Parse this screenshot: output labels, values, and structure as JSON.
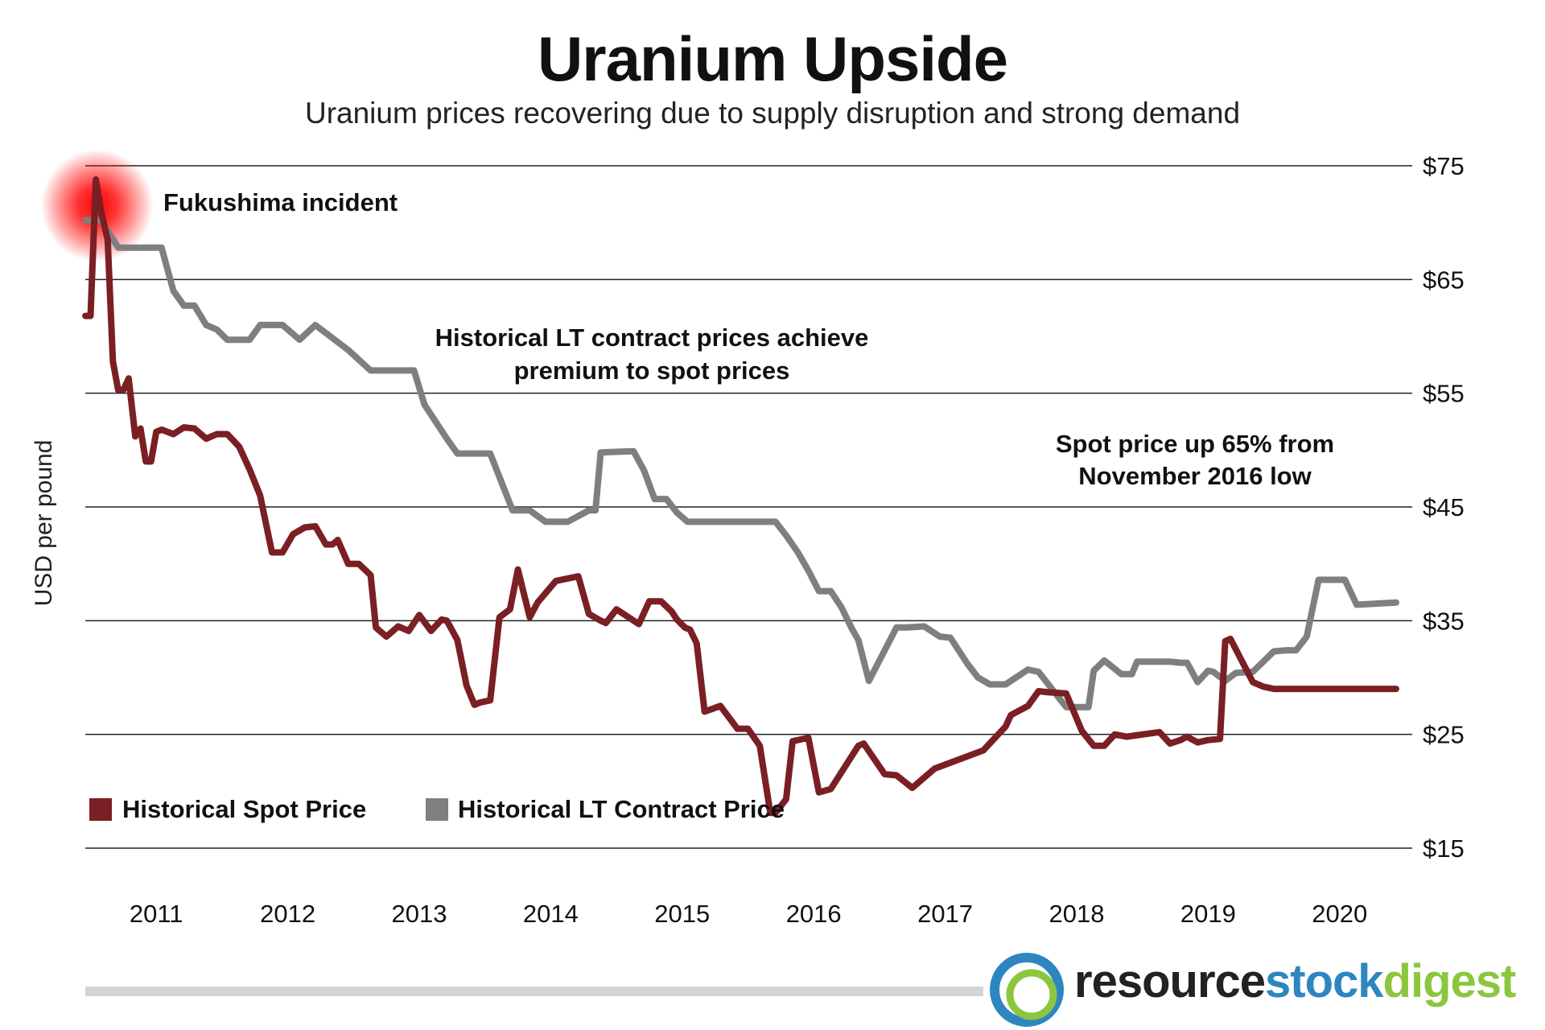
{
  "title": "Uranium Upside",
  "subtitle": "Uranium prices recovering due to supply disruption and strong demand",
  "colors": {
    "spot": "#7a1f24",
    "lt": "#7f7f7f",
    "grid": "#222222",
    "glow": "#ff0000"
  },
  "annotations": {
    "fukushima": "Fukushima incident",
    "lt_premium_line1": "Historical LT contract prices achieve",
    "lt_premium_line2": "premium to spot prices",
    "spot_up_line1": "Spot price up 65% from",
    "spot_up_line2": "November 2016 low"
  },
  "logo": {
    "part1": "resource",
    "part2": "stock",
    "part3": "digest"
  },
  "chart_data": {
    "type": "line",
    "title": "Uranium Upside",
    "subtitle": "Uranium prices recovering due to supply disruption and strong demand",
    "ylabel": "USD per pound",
    "xlabel": "",
    "xlim": [
      2010.5,
      2020.47
    ],
    "ylim": [
      15,
      75
    ],
    "y_ticks": [
      15,
      25,
      35,
      45,
      55,
      65,
      75
    ],
    "y_tick_labels": [
      "$15",
      "$25",
      "$35",
      "$45",
      "$55",
      "$65",
      "$75"
    ],
    "x_ticks": [
      2011,
      2012,
      2013,
      2014,
      2015,
      2016,
      2017,
      2018,
      2019,
      2020
    ],
    "x_tick_labels": [
      "2011",
      "2012",
      "2013",
      "2014",
      "2015",
      "2016",
      "2017",
      "2018",
      "2019",
      "2020"
    ],
    "y_axis_side": "right",
    "grid": "horizontal",
    "legend": "bottom-left",
    "series": [
      {
        "name": "Historical Spot Price",
        "x": [
          2010.5,
          2010.54,
          2010.58,
          2010.62,
          2010.67,
          2010.71,
          2010.75,
          2010.79,
          2010.83,
          2010.88,
          2010.92,
          2010.96,
          2011.0,
          2011.04,
          2011.08,
          2011.17,
          2011.25,
          2011.33,
          2011.42,
          2011.5,
          2011.58,
          2011.67,
          2011.75,
          2011.83,
          2011.92,
          2012.0,
          2012.08,
          2012.17,
          2012.25,
          2012.33,
          2012.38,
          2012.42,
          2012.5,
          2012.58,
          2012.67,
          2012.71,
          2012.79,
          2012.88,
          2012.96,
          2013.04,
          2013.13,
          2013.21,
          2013.25,
          2013.33,
          2013.4,
          2013.46,
          2013.5,
          2013.58,
          2013.65,
          2013.73,
          2013.79,
          2013.88,
          2013.94,
          2014.08,
          2014.25,
          2014.33,
          2014.42,
          2014.46,
          2014.54,
          2014.71,
          2014.79,
          2014.88,
          2014.96,
          2015.0,
          2015.06,
          2015.1,
          2015.15,
          2015.21,
          2015.33,
          2015.46,
          2015.54,
          2015.63,
          2015.71,
          2015.75,
          2015.83,
          2015.88,
          2016.0,
          2016.08,
          2016.17,
          2016.38,
          2016.42,
          2016.58,
          2016.67,
          2016.79,
          2016.96,
          2017.33,
          2017.5,
          2017.54,
          2017.67,
          2017.75,
          2017.83,
          2017.96,
          2018.08,
          2018.17,
          2018.25,
          2018.33,
          2018.42,
          2018.67,
          2018.75,
          2018.83,
          2018.88,
          2018.96,
          2019.04,
          2019.13,
          2019.17,
          2019.21,
          2019.25,
          2019.38,
          2019.46,
          2019.54,
          2019.71,
          2019.75,
          2019.83,
          2019.92,
          2020.0,
          2020.08,
          2020.17,
          2020.25,
          2020.47
        ],
        "values": [
          61.8,
          61.8,
          73.8,
          71.0,
          68.5,
          57.8,
          55.3,
          55.3,
          56.3,
          51.2,
          51.9,
          49.0,
          49.0,
          51.6,
          51.8,
          51.4,
          52.0,
          51.9,
          51.0,
          51.4,
          51.4,
          50.3,
          48.3,
          46.0,
          41.0,
          41.0,
          42.6,
          43.2,
          43.3,
          41.7,
          41.7,
          42.1,
          40.0,
          40.0,
          39.0,
          34.4,
          33.6,
          34.5,
          34.1,
          35.5,
          34.1,
          35.1,
          35.0,
          33.3,
          29.3,
          27.6,
          27.8,
          28.0,
          35.3,
          36.0,
          39.5,
          35.3,
          36.6,
          38.5,
          38.9,
          35.6,
          35.0,
          34.8,
          36.0,
          34.7,
          36.7,
          36.7,
          35.8,
          35.1,
          34.4,
          34.2,
          33.0,
          27.0,
          27.5,
          25.5,
          25.5,
          24.0,
          18.1,
          18.1,
          19.3,
          24.4,
          24.7,
          19.9,
          20.2,
          24.0,
          24.2,
          21.5,
          21.4,
          20.3,
          22.0,
          23.6,
          25.7,
          26.7,
          27.5,
          28.8,
          28.7,
          28.6,
          25.3,
          24.0,
          24.0,
          25.0,
          24.8,
          25.2,
          24.2,
          24.5,
          24.8,
          24.3,
          24.5,
          24.6,
          33.2,
          33.4,
          32.5,
          29.6,
          29.2,
          29.0,
          29.0,
          29.0,
          29.0,
          29.0,
          29.0,
          29.0,
          29.0,
          29.0,
          29.0
        ],
        "color": "#7a1f24"
      },
      {
        "name": "Historical LT Contract Price",
        "x": [
          2010.5,
          2010.62,
          2010.75,
          2011.0,
          2011.04,
          2011.08,
          2011.17,
          2011.25,
          2011.33,
          2011.42,
          2011.5,
          2011.58,
          2011.75,
          2011.83,
          2011.88,
          2011.96,
          2012.0,
          2012.13,
          2012.25,
          2012.5,
          2012.67,
          2012.75,
          2012.92,
          2013.0,
          2013.08,
          2013.25,
          2013.33,
          2013.5,
          2013.58,
          2013.75,
          2013.88,
          2014.0,
          2014.17,
          2014.33,
          2014.38,
          2014.42,
          2014.67,
          2014.75,
          2014.83,
          2014.92,
          2015.0,
          2015.08,
          2015.17,
          2015.33,
          2015.5,
          2015.67,
          2015.71,
          2015.75,
          2015.83,
          2015.92,
          2016.0,
          2016.08,
          2016.17,
          2016.25,
          2016.33,
          2016.38,
          2016.46,
          2016.67,
          2016.75,
          2016.88,
          2017.0,
          2017.08,
          2017.21,
          2017.29,
          2017.38,
          2017.5,
          2017.67,
          2017.75,
          2017.96,
          2018.04,
          2018.13,
          2018.17,
          2018.25,
          2018.38,
          2018.46,
          2018.5,
          2018.75,
          2018.83,
          2018.88,
          2018.96,
          2019.04,
          2019.08,
          2019.17,
          2019.25,
          2019.38,
          2019.54,
          2019.63,
          2019.71,
          2019.79,
          2019.88,
          2020.08,
          2020.17,
          2020.47
        ],
        "values": [
          70.2,
          70.2,
          67.8,
          67.8,
          67.8,
          67.8,
          64.0,
          62.7,
          62.7,
          61.0,
          60.6,
          59.7,
          59.7,
          61.0,
          61.0,
          61.0,
          61.0,
          59.7,
          61.0,
          58.8,
          57.0,
          57.0,
          57.0,
          57.0,
          54.0,
          51.0,
          49.7,
          49.7,
          49.7,
          44.7,
          44.7,
          43.7,
          43.7,
          44.7,
          44.7,
          49.8,
          49.9,
          48.2,
          45.7,
          45.7,
          44.5,
          43.7,
          43.7,
          43.7,
          43.7,
          43.7,
          43.7,
          43.7,
          42.5,
          41.0,
          39.4,
          37.6,
          37.6,
          36.2,
          34.3,
          33.3,
          29.7,
          34.4,
          34.4,
          34.5,
          33.6,
          33.5,
          31.2,
          30.0,
          29.4,
          29.4,
          30.7,
          30.5,
          27.4,
          27.4,
          27.4,
          30.6,
          31.5,
          30.3,
          30.3,
          31.4,
          31.4,
          31.3,
          31.3,
          29.6,
          30.6,
          30.5,
          29.7,
          30.4,
          30.5,
          32.3,
          32.4,
          32.4,
          33.6,
          38.6,
          38.6,
          36.4,
          36.6
        ],
        "color": "#7f7f7f"
      }
    ],
    "annotations": [
      "Fukushima incident",
      "Historical LT contract prices achieve premium to spot prices",
      "Spot price up 65% from November 2016 low"
    ]
  }
}
